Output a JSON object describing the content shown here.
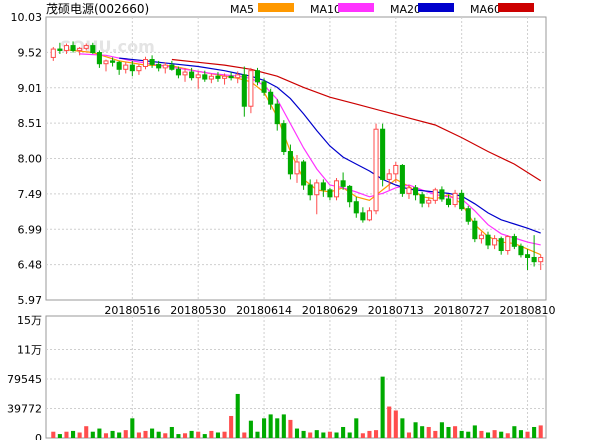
{
  "title": "茂硕电源(002660)",
  "watermark": "SOHU.com",
  "legend": [
    {
      "name": "MA5",
      "color": "#ff9900"
    },
    {
      "name": "MA10",
      "color": "#ff33ff"
    },
    {
      "name": "MA20",
      "color": "#0000cc"
    },
    {
      "name": "MA60",
      "color": "#cc0000"
    }
  ],
  "colors": {
    "up": "#ff4d4d",
    "down": "#00aa00"
  },
  "chart_data": [
    {
      "type": "candlestick",
      "title": "茂硕电源(002660)",
      "y_ticks": [
        "10.03",
        "9.52",
        "9.01",
        "8.51",
        "8.00",
        "7.49",
        "6.99",
        "6.48",
        "5.97"
      ],
      "ylim": [
        5.97,
        10.03
      ],
      "x_ticks": [
        {
          "index": 12,
          "label": "20180516"
        },
        {
          "index": 22,
          "label": "20180530"
        },
        {
          "index": 32,
          "label": "20180614"
        },
        {
          "index": 42,
          "label": "20180629"
        },
        {
          "index": 52,
          "label": "20180713"
        },
        {
          "index": 62,
          "label": "20180727"
        },
        {
          "index": 72,
          "label": "20180810"
        }
      ],
      "candles": [
        [
          9.45,
          9.6,
          9.4,
          9.57
        ],
        [
          9.57,
          9.66,
          9.5,
          9.55
        ],
        [
          9.55,
          9.65,
          9.5,
          9.62
        ],
        [
          9.62,
          9.68,
          9.52,
          9.55
        ],
        [
          9.55,
          9.6,
          9.48,
          9.58
        ],
        [
          9.58,
          9.65,
          9.55,
          9.62
        ],
        [
          9.62,
          9.66,
          9.5,
          9.52
        ],
        [
          9.52,
          9.55,
          9.3,
          9.36
        ],
        [
          9.36,
          9.42,
          9.25,
          9.4
        ],
        [
          9.4,
          9.45,
          9.32,
          9.38
        ],
        [
          9.38,
          9.4,
          9.2,
          9.28
        ],
        [
          9.28,
          9.38,
          9.22,
          9.34
        ],
        [
          9.34,
          9.4,
          9.18,
          9.26
        ],
        [
          9.26,
          9.35,
          9.2,
          9.32
        ],
        [
          9.32,
          9.46,
          9.28,
          9.42
        ],
        [
          9.42,
          9.48,
          9.3,
          9.35
        ],
        [
          9.35,
          9.4,
          9.25,
          9.3
        ],
        [
          9.3,
          9.38,
          9.22,
          9.34
        ],
        [
          9.34,
          9.4,
          9.26,
          9.28
        ],
        [
          9.28,
          9.32,
          9.15,
          9.2
        ],
        [
          9.2,
          9.3,
          9.1,
          9.24
        ],
        [
          9.24,
          9.3,
          9.12,
          9.16
        ],
        [
          9.16,
          9.25,
          9.0,
          9.2
        ],
        [
          9.2,
          9.26,
          9.1,
          9.14
        ],
        [
          9.14,
          9.22,
          9.08,
          9.18
        ],
        [
          9.18,
          9.24,
          9.1,
          9.15
        ],
        [
          9.15,
          9.22,
          9.06,
          9.18
        ],
        [
          9.18,
          9.24,
          9.12,
          9.16
        ],
        [
          9.16,
          9.25,
          9.08,
          9.2
        ],
        [
          9.2,
          9.32,
          8.6,
          8.75
        ],
        [
          8.75,
          9.3,
          8.65,
          9.26
        ],
        [
          9.26,
          9.3,
          9.05,
          9.1
        ],
        [
          9.1,
          9.15,
          8.9,
          8.95
        ],
        [
          8.95,
          9.0,
          8.7,
          8.78
        ],
        [
          8.78,
          8.85,
          8.4,
          8.5
        ],
        [
          8.5,
          8.55,
          8.05,
          8.1
        ],
        [
          8.1,
          8.2,
          7.7,
          7.78
        ],
        [
          7.78,
          8.05,
          7.65,
          7.95
        ],
        [
          7.95,
          7.98,
          7.55,
          7.62
        ],
        [
          7.62,
          7.7,
          7.4,
          7.48
        ],
        [
          7.48,
          7.7,
          7.2,
          7.65
        ],
        [
          7.65,
          7.7,
          7.45,
          7.55
        ],
        [
          7.55,
          7.58,
          7.4,
          7.45
        ],
        [
          7.45,
          7.72,
          7.4,
          7.68
        ],
        [
          7.68,
          7.8,
          7.55,
          7.6
        ],
        [
          7.6,
          7.62,
          7.3,
          7.38
        ],
        [
          7.38,
          7.45,
          7.15,
          7.22
        ],
        [
          7.22,
          7.3,
          7.08,
          7.12
        ],
        [
          7.12,
          7.3,
          7.1,
          7.25
        ],
        [
          7.25,
          8.5,
          7.2,
          8.42
        ],
        [
          8.42,
          8.5,
          7.6,
          7.7
        ],
        [
          7.7,
          7.85,
          7.55,
          7.78
        ],
        [
          7.78,
          7.95,
          7.65,
          7.9
        ],
        [
          7.9,
          7.92,
          7.45,
          7.5
        ],
        [
          7.5,
          7.62,
          7.42,
          7.58
        ],
        [
          7.58,
          7.62,
          7.4,
          7.48
        ],
        [
          7.48,
          7.52,
          7.3,
          7.36
        ],
        [
          7.36,
          7.45,
          7.3,
          7.4
        ],
        [
          7.4,
          7.58,
          7.35,
          7.55
        ],
        [
          7.55,
          7.6,
          7.38,
          7.42
        ],
        [
          7.42,
          7.48,
          7.3,
          7.34
        ],
        [
          7.34,
          7.55,
          7.3,
          7.5
        ],
        [
          7.5,
          7.55,
          7.25,
          7.28
        ],
        [
          7.28,
          7.32,
          7.05,
          7.1
        ],
        [
          7.1,
          7.15,
          6.8,
          6.85
        ],
        [
          6.85,
          6.95,
          6.78,
          6.9
        ],
        [
          6.9,
          6.95,
          6.7,
          6.76
        ],
        [
          6.76,
          6.9,
          6.7,
          6.85
        ],
        [
          6.85,
          6.88,
          6.62,
          6.68
        ],
        [
          6.68,
          6.9,
          6.62,
          6.88
        ],
        [
          6.88,
          6.92,
          6.7,
          6.74
        ],
        [
          6.74,
          6.78,
          6.58,
          6.62
        ],
        [
          6.62,
          6.7,
          6.4,
          6.58
        ],
        [
          6.58,
          6.9,
          6.45,
          6.52
        ],
        [
          6.52,
          6.62,
          6.4,
          6.58
        ]
      ],
      "series": [
        {
          "name": "MA5",
          "color": "#ff9900",
          "points": [
            [
              2,
              9.56
            ],
            [
              6,
              9.52
            ],
            [
              10,
              9.4
            ],
            [
              14,
              9.34
            ],
            [
              18,
              9.33
            ],
            [
              22,
              9.25
            ],
            [
              26,
              9.18
            ],
            [
              28,
              9.15
            ],
            [
              30,
              9.1
            ],
            [
              32,
              8.95
            ],
            [
              34,
              8.6
            ],
            [
              36,
              8.1
            ],
            [
              38,
              7.7
            ],
            [
              40,
              7.55
            ],
            [
              42,
              7.52
            ],
            [
              44,
              7.58
            ],
            [
              46,
              7.45
            ],
            [
              48,
              7.4
            ],
            [
              50,
              7.55
            ],
            [
              52,
              7.7
            ],
            [
              54,
              7.6
            ],
            [
              56,
              7.45
            ],
            [
              58,
              7.42
            ],
            [
              60,
              7.48
            ],
            [
              62,
              7.35
            ],
            [
              64,
              7.05
            ],
            [
              66,
              6.88
            ],
            [
              68,
              6.8
            ],
            [
              70,
              6.78
            ],
            [
              72,
              6.7
            ],
            [
              74,
              6.62
            ]
          ]
        },
        {
          "name": "MA10",
          "color": "#ff33ff",
          "points": [
            [
              4,
              9.5
            ],
            [
              8,
              9.48
            ],
            [
              12,
              9.4
            ],
            [
              16,
              9.34
            ],
            [
              20,
              9.28
            ],
            [
              24,
              9.22
            ],
            [
              28,
              9.18
            ],
            [
              30,
              9.15
            ],
            [
              32,
              9.05
            ],
            [
              34,
              8.85
            ],
            [
              36,
              8.5
            ],
            [
              38,
              8.15
            ],
            [
              40,
              7.85
            ],
            [
              42,
              7.62
            ],
            [
              44,
              7.58
            ],
            [
              46,
              7.52
            ],
            [
              48,
              7.45
            ],
            [
              50,
              7.5
            ],
            [
              52,
              7.58
            ],
            [
              54,
              7.62
            ],
            [
              56,
              7.55
            ],
            [
              58,
              7.48
            ],
            [
              60,
              7.45
            ],
            [
              62,
              7.42
            ],
            [
              64,
              7.25
            ],
            [
              66,
              7.05
            ],
            [
              68,
              6.92
            ],
            [
              70,
              6.86
            ],
            [
              72,
              6.8
            ],
            [
              74,
              6.76
            ]
          ]
        },
        {
          "name": "MA20",
          "color": "#0000cc",
          "points": [
            [
              10,
              9.44
            ],
            [
              14,
              9.4
            ],
            [
              18,
              9.36
            ],
            [
              22,
              9.32
            ],
            [
              26,
              9.26
            ],
            [
              28,
              9.22
            ],
            [
              30,
              9.18
            ],
            [
              32,
              9.12
            ],
            [
              34,
              9.02
            ],
            [
              36,
              8.86
            ],
            [
              38,
              8.64
            ],
            [
              40,
              8.4
            ],
            [
              42,
              8.18
            ],
            [
              44,
              8.02
            ],
            [
              46,
              7.92
            ],
            [
              48,
              7.82
            ],
            [
              50,
              7.7
            ],
            [
              52,
              7.62
            ],
            [
              54,
              7.56
            ],
            [
              56,
              7.54
            ],
            [
              58,
              7.52
            ],
            [
              60,
              7.5
            ],
            [
              62,
              7.46
            ],
            [
              64,
              7.35
            ],
            [
              66,
              7.22
            ],
            [
              68,
              7.12
            ],
            [
              70,
              7.06
            ],
            [
              72,
              7.0
            ],
            [
              74,
              6.93
            ]
          ]
        },
        {
          "name": "MA60",
          "color": "#cc0000",
          "points": [
            [
              18,
              9.42
            ],
            [
              22,
              9.38
            ],
            [
              26,
              9.34
            ],
            [
              30,
              9.28
            ],
            [
              34,
              9.18
            ],
            [
              38,
              9.02
            ],
            [
              42,
              8.88
            ],
            [
              46,
              8.78
            ],
            [
              50,
              8.68
            ],
            [
              54,
              8.58
            ],
            [
              58,
              8.48
            ],
            [
              62,
              8.3
            ],
            [
              66,
              8.1
            ],
            [
              70,
              7.92
            ],
            [
              74,
              7.68
            ]
          ]
        }
      ]
    },
    {
      "type": "bar",
      "y_ticks": [
        "15万",
        "11万",
        "79545",
        "39772",
        "0"
      ],
      "ylim": [
        0,
        150000
      ],
      "values": [
        8000,
        5000,
        8000,
        9000,
        7000,
        15000,
        8000,
        12000,
        6000,
        9000,
        7000,
        10000,
        25000,
        7000,
        9000,
        12000,
        8000,
        6000,
        14000,
        5000,
        6000,
        9000,
        8000,
        5000,
        9000,
        7000,
        8000,
        28000,
        56000,
        7000,
        22000,
        8000,
        25000,
        30000,
        25000,
        30000,
        23000,
        12000,
        9000,
        7000,
        10000,
        7000,
        8000,
        7000,
        14000,
        7000,
        25000,
        6000,
        9000,
        10000,
        78000,
        40000,
        35000,
        25000,
        7000,
        20000,
        15000,
        14000,
        9000,
        20000,
        14000,
        15000,
        9000,
        8000,
        16000,
        9000,
        7000,
        10000,
        8000,
        6000,
        15000,
        10000,
        8000,
        14000,
        16000
      ],
      "colors_up": [
        true,
        false,
        true,
        false,
        true,
        true,
        false,
        false,
        true,
        false,
        false,
        true,
        false,
        true,
        true,
        false,
        false,
        true,
        false,
        false,
        true,
        false,
        true,
        false,
        true,
        false,
        true,
        true,
        false,
        true,
        false,
        false,
        false,
        false,
        false,
        false,
        true,
        false,
        false,
        true,
        false,
        false,
        true,
        false,
        false,
        false,
        false,
        true,
        true,
        true,
        false,
        true,
        true,
        false,
        true,
        false,
        false,
        true,
        true,
        false,
        false,
        true,
        false,
        false,
        false,
        true,
        false,
        true,
        false,
        true,
        false,
        false,
        true,
        false,
        true
      ]
    }
  ]
}
